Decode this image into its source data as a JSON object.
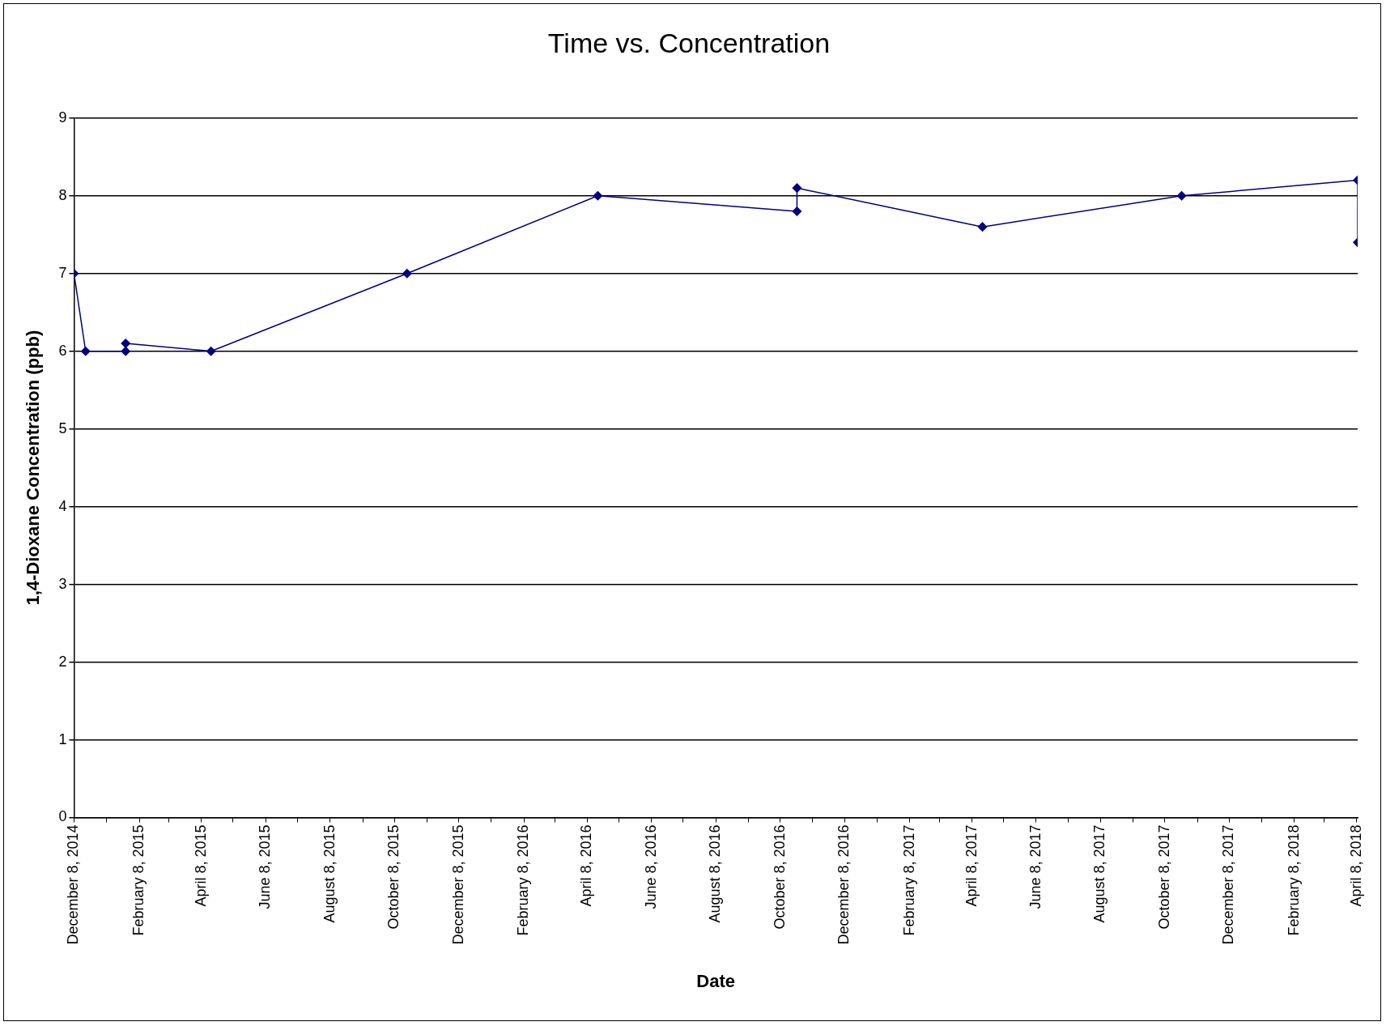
{
  "chart_data": {
    "type": "line",
    "title": "Time vs. Concentration",
    "xlabel": "Date",
    "ylabel": "1,4-Dioxane Concentration (ppb)",
    "x": [
      "2014-12-08",
      "2014-12-19",
      "2015-01-26",
      "2015-01-26",
      "2015-04-17",
      "2015-10-20",
      "2016-04-18",
      "2016-10-24",
      "2016-10-24",
      "2017-04-18",
      "2017-10-24",
      "2018-04-09",
      "2018-04-09"
    ],
    "series": [
      {
        "color": "#000080",
        "values": [
          7,
          6,
          6,
          6.1,
          6,
          7,
          8,
          7.8,
          8.1,
          7.6,
          8,
          8.2,
          7.4
        ]
      }
    ],
    "xlim": [
      "2014-12-08",
      "2018-04-09"
    ],
    "xticks": [
      {
        "value": "2014-12-08",
        "label": "December 8, 2014"
      },
      {
        "value": "2015-01-08",
        "label": null
      },
      {
        "value": "2015-02-08",
        "label": "February 8, 2015"
      },
      {
        "value": "2015-03-08",
        "label": null
      },
      {
        "value": "2015-04-08",
        "label": "April 8, 2015"
      },
      {
        "value": "2015-05-08",
        "label": null
      },
      {
        "value": "2015-06-08",
        "label": "June 8, 2015"
      },
      {
        "value": "2015-07-08",
        "label": null
      },
      {
        "value": "2015-08-08",
        "label": "August 8, 2015"
      },
      {
        "value": "2015-09-08",
        "label": null
      },
      {
        "value": "2015-10-08",
        "label": "October 8, 2015"
      },
      {
        "value": "2015-11-08",
        "label": null
      },
      {
        "value": "2015-12-08",
        "label": "December 8, 2015"
      },
      {
        "value": "2016-01-08",
        "label": null
      },
      {
        "value": "2016-02-08",
        "label": "February 8, 2016"
      },
      {
        "value": "2016-03-08",
        "label": null
      },
      {
        "value": "2016-04-08",
        "label": "April 8, 2016"
      },
      {
        "value": "2016-05-08",
        "label": null
      },
      {
        "value": "2016-06-08",
        "label": "June 8, 2016"
      },
      {
        "value": "2016-07-08",
        "label": null
      },
      {
        "value": "2016-08-08",
        "label": "August 8, 2016"
      },
      {
        "value": "2016-09-08",
        "label": null
      },
      {
        "value": "2016-10-08",
        "label": "October 8, 2016"
      },
      {
        "value": "2016-11-08",
        "label": null
      },
      {
        "value": "2016-12-08",
        "label": "December 8, 2016"
      },
      {
        "value": "2017-01-08",
        "label": null
      },
      {
        "value": "2017-02-08",
        "label": "February 8, 2017"
      },
      {
        "value": "2017-03-08",
        "label": null
      },
      {
        "value": "2017-04-08",
        "label": "April 8, 2017"
      },
      {
        "value": "2017-05-08",
        "label": null
      },
      {
        "value": "2017-06-08",
        "label": "June 8, 2017"
      },
      {
        "value": "2017-07-08",
        "label": null
      },
      {
        "value": "2017-08-08",
        "label": "August 8, 2017"
      },
      {
        "value": "2017-09-08",
        "label": null
      },
      {
        "value": "2017-10-08",
        "label": "October 8, 2017"
      },
      {
        "value": "2017-11-08",
        "label": null
      },
      {
        "value": "2017-12-08",
        "label": "December 8, 2017"
      },
      {
        "value": "2018-01-08",
        "label": null
      },
      {
        "value": "2018-02-08",
        "label": "February 8, 2018"
      },
      {
        "value": "2018-03-08",
        "label": null
      },
      {
        "value": "2018-04-08",
        "label": "April 8, 2018"
      }
    ],
    "ylim": [
      0,
      9
    ],
    "yticks": [
      0,
      1,
      2,
      3,
      4,
      5,
      6,
      7,
      8,
      9
    ],
    "grid": "y",
    "marker": "diamond",
    "line_style": "solid",
    "legend": false
  }
}
